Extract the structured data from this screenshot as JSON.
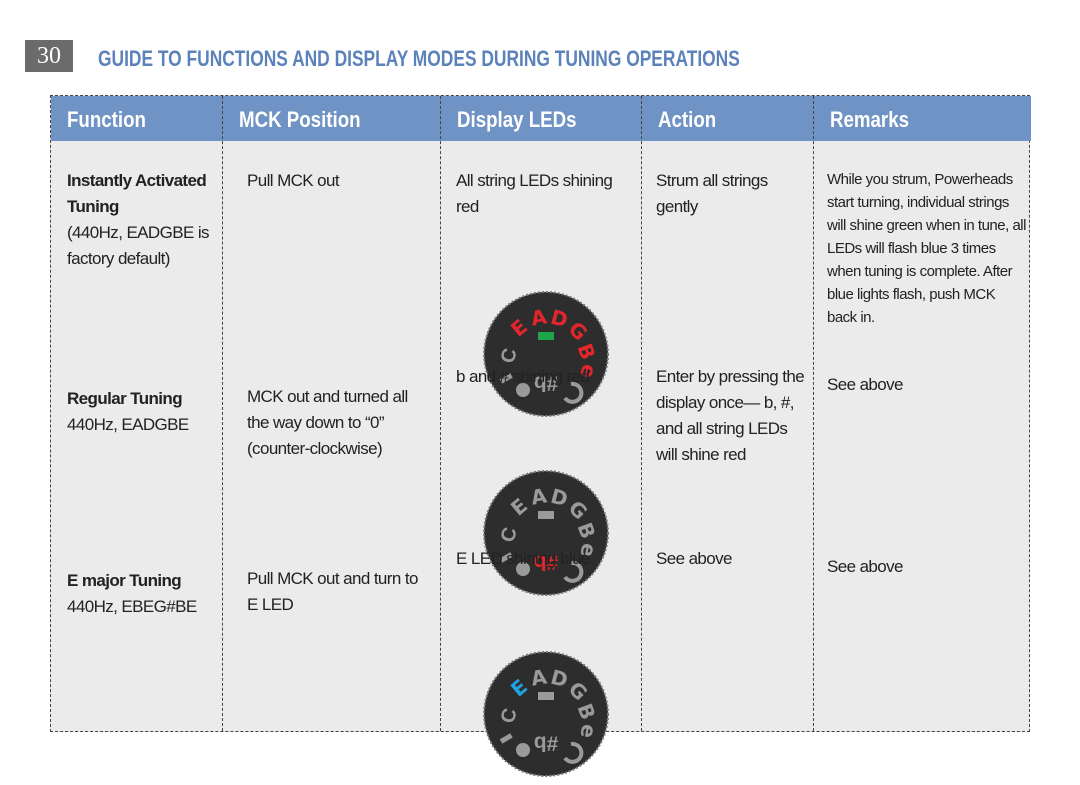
{
  "header": {
    "page_number": "30",
    "title": "GUIDE TO FUNCTIONS AND DISPLAY MODES DURING TUNING OPERATIONS"
  },
  "dial": {
    "letters": [
      "E",
      "A",
      "D",
      "G",
      "B",
      "e"
    ],
    "side": "C",
    "symbols": "#b"
  },
  "table": {
    "columns": [
      "Function",
      "MCK Position",
      "Display LEDs",
      "Action",
      "Remarks"
    ],
    "rows": [
      {
        "function": "Instantly Activated Tuning",
        "function_detail": "(440Hz, EADGBE is factory default)",
        "mck": "Pull MCK out",
        "display": "All string LEDs shining red",
        "lit": "letters",
        "lit_color": "#e3262b",
        "center_color": "#1fa64a",
        "action": "Strum all strings gently",
        "remarks": "While you strum, Powerheads start turning, individual strings will shine green when in tune, all LEDs will flash blue 3 times when tuning is complete. After blue lights flash, push MCK back in."
      },
      {
        "function": "Regular Tuning",
        "function_detail": "440Hz, EADGBE",
        "mck": "MCK out and turned all the way down to “0” (counter-clockwise)",
        "display": "b and # shining red",
        "lit": "symbols",
        "lit_color": "#e3262b",
        "action": "Enter by pressing the display once— b, #, and all string LEDs will shine red",
        "remarks": "See above"
      },
      {
        "function": "E major Tuning",
        "function_detail": "440Hz, EBEG#BE",
        "mck": "Pull MCK out and turn to E LED",
        "display": "E LED shining blue",
        "lit": "E",
        "lit_color": "#1fa3e0",
        "action": "See above",
        "remarks": "See above"
      }
    ]
  }
}
